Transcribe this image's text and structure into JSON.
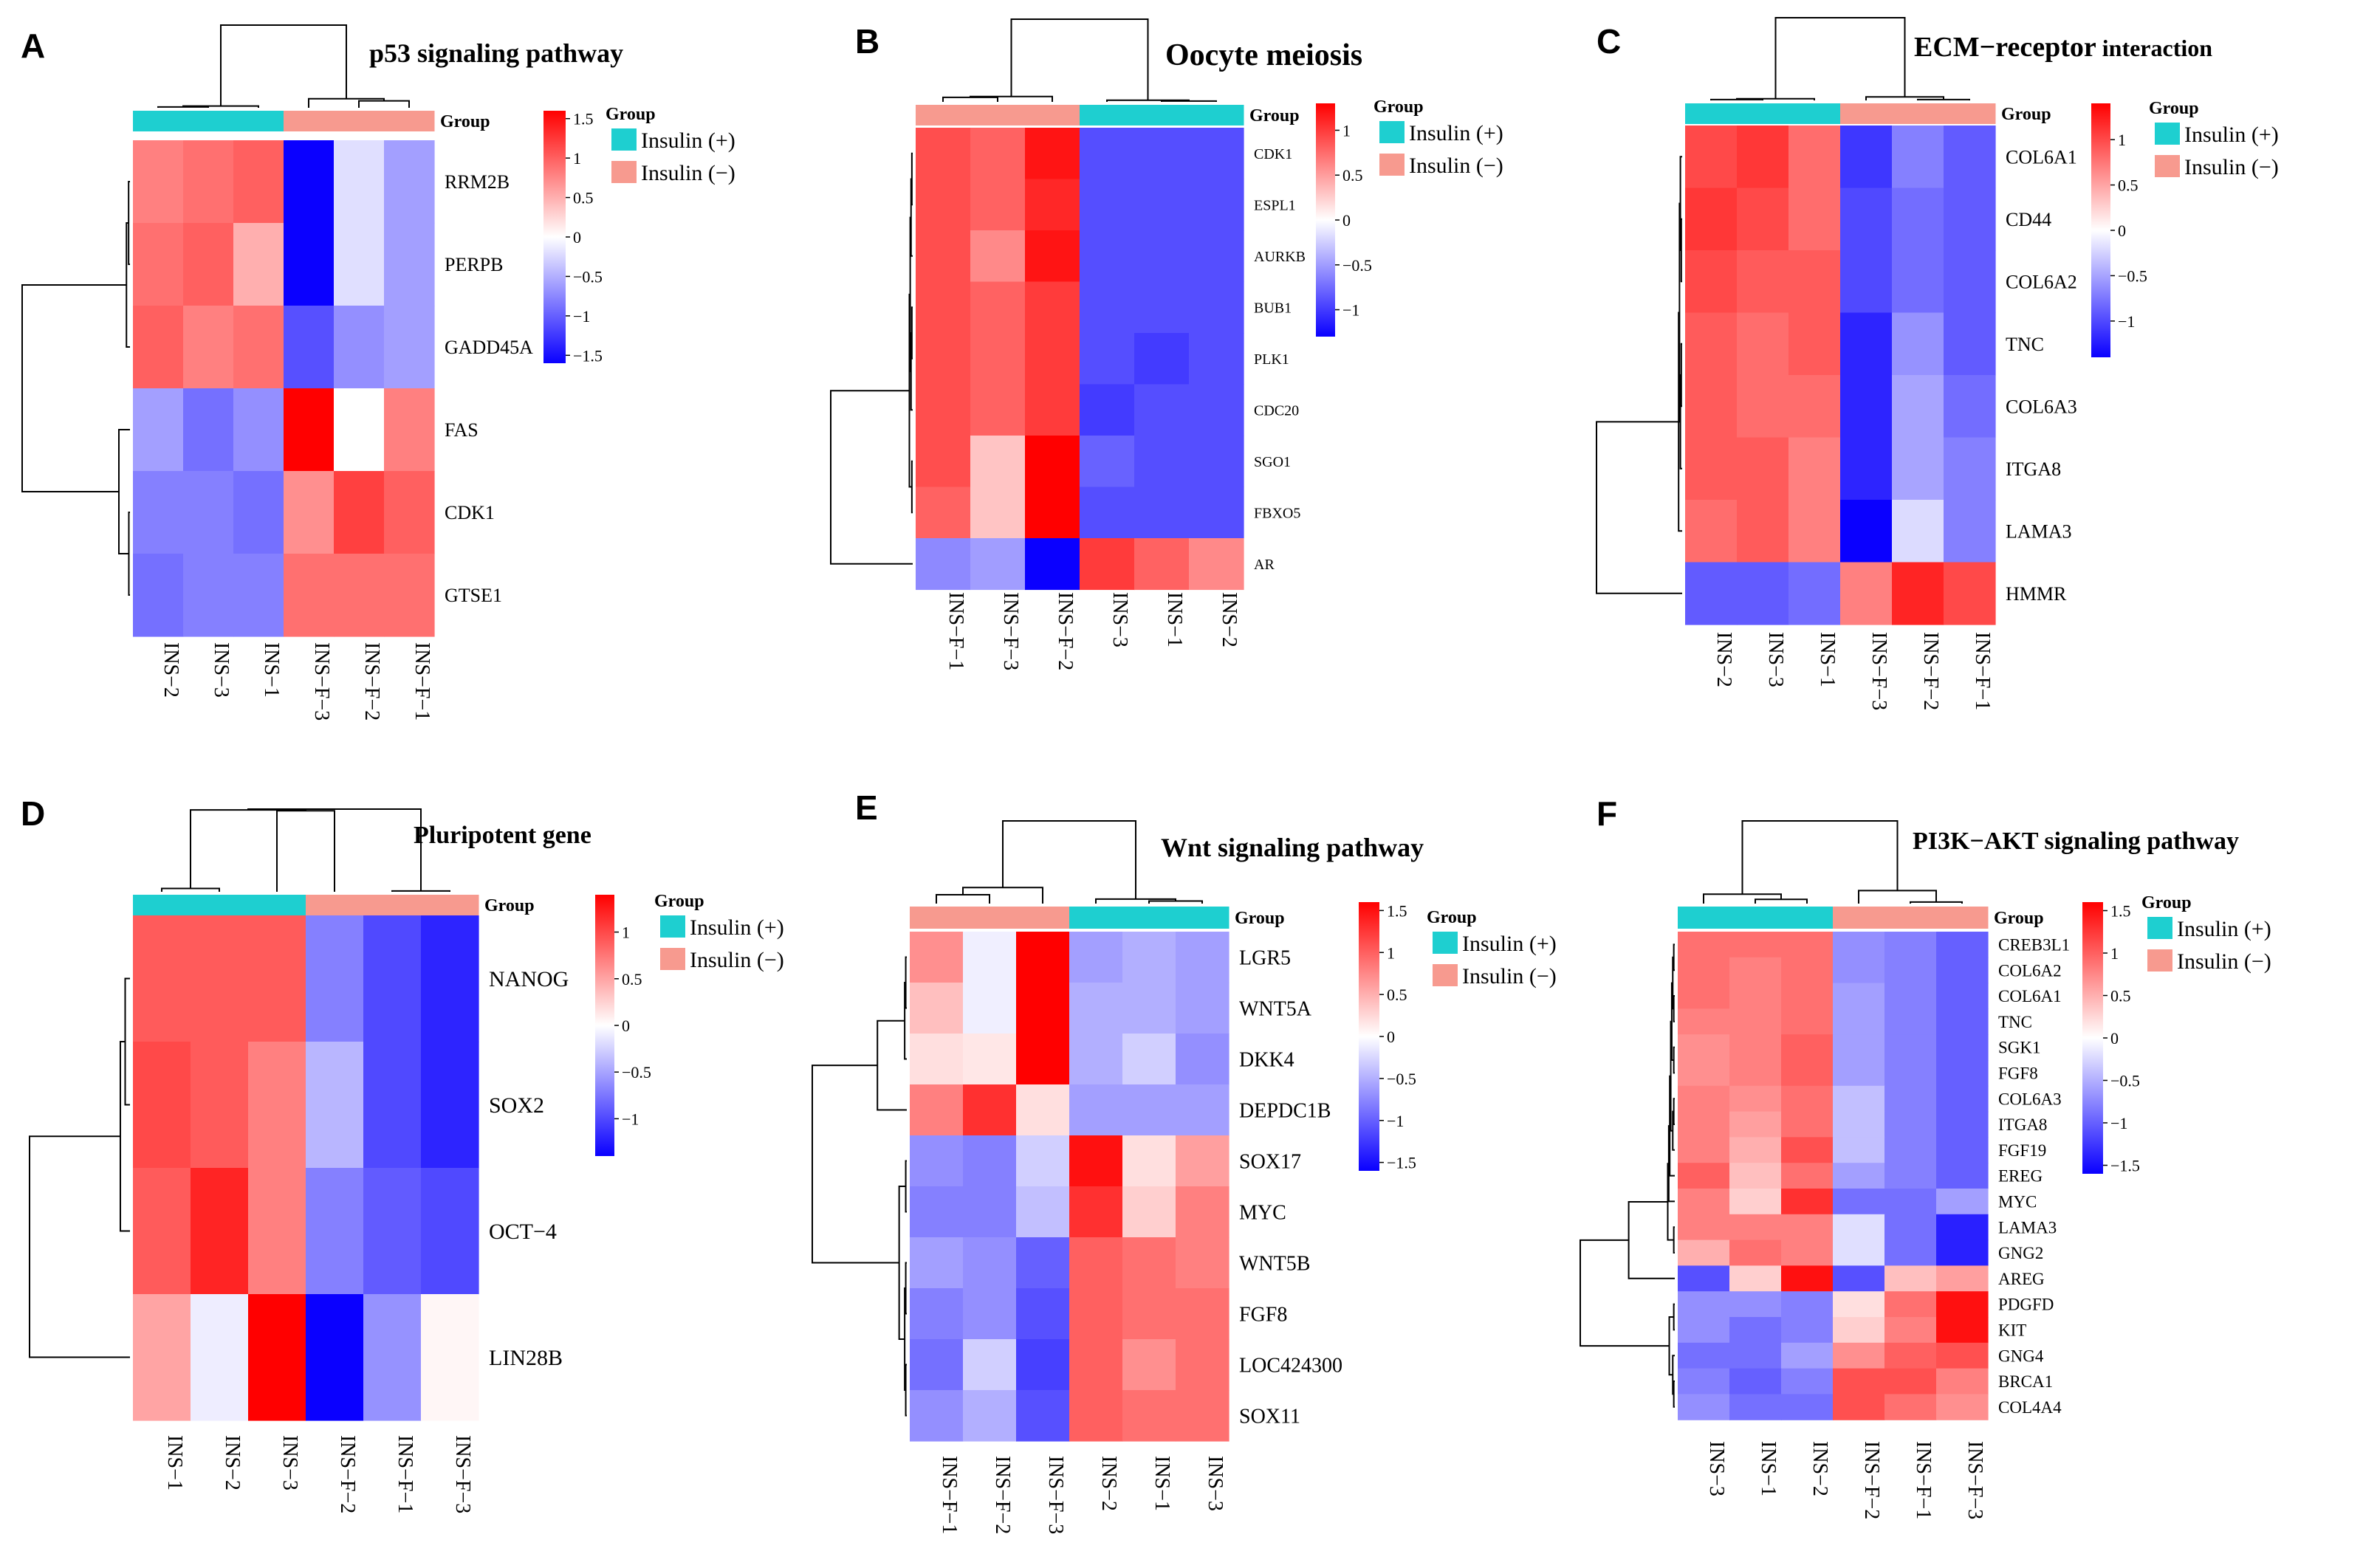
{
  "colors": {
    "insulin_plus": "#1ECFD0",
    "insulin_minus": "#F79A8F",
    "low": "#0A00FF",
    "mid": "#FFFFFF",
    "high": "#FF0000"
  },
  "legend": {
    "title": "Group",
    "plus_label": "Insulin (+)",
    "minus_label": "Insulin (−)"
  },
  "group_row_label": "Group",
  "chart_data": [
    {
      "type": "heatmap",
      "panel": "A",
      "title": "p53 signaling pathway",
      "samples": [
        "INS−2",
        "INS−3",
        "INS−1",
        "INS−F−3",
        "INS−F−2",
        "INS−F−1"
      ],
      "sample_groups": [
        "plus",
        "plus",
        "plus",
        "minus",
        "minus",
        "minus"
      ],
      "genes": [
        "RRM2B",
        "PERPB",
        "GADD45A",
        "FAS",
        "CDK1",
        "GTSE1"
      ],
      "values": [
        [
          0.8,
          0.9,
          1.0,
          -1.6,
          -0.2,
          -0.6
        ],
        [
          0.9,
          1.0,
          0.5,
          -1.6,
          -0.2,
          -0.6
        ],
        [
          1.0,
          0.8,
          0.9,
          -1.1,
          -0.7,
          -0.6
        ],
        [
          -0.6,
          -0.9,
          -0.7,
          1.6,
          0.0,
          0.8
        ],
        [
          -0.8,
          -0.8,
          -0.9,
          0.7,
          1.2,
          1.0
        ],
        [
          -0.9,
          -0.8,
          -0.8,
          0.9,
          0.9,
          0.9
        ]
      ],
      "scale_ticks": [
        "1.5",
        "1",
        "0.5",
        "0",
        "−0.5",
        "−1",
        "−1.5"
      ],
      "tick_values": [
        1.5,
        1,
        0.5,
        0,
        -0.5,
        -1,
        -1.5
      ],
      "range": [
        -1.6,
        1.6
      ]
    },
    {
      "type": "heatmap",
      "panel": "B",
      "title": "Oocyte meiosis",
      "samples": [
        "INS−F−1",
        "INS−F−3",
        "INS−F−2",
        "INS−3",
        "INS−1",
        "INS−2"
      ],
      "sample_groups": [
        "minus",
        "minus",
        "minus",
        "plus",
        "plus",
        "plus"
      ],
      "genes": [
        "CDK1",
        "ESPL1",
        "AURKB",
        "BUB1",
        "PLK1",
        "CDC20",
        "SGO1",
        "FBXO5",
        "AR"
      ],
      "values": [
        [
          0.9,
          0.8,
          1.2,
          -0.9,
          -0.9,
          -0.9
        ],
        [
          0.9,
          0.8,
          1.1,
          -0.9,
          -0.9,
          -0.9
        ],
        [
          0.9,
          0.6,
          1.2,
          -0.9,
          -0.9,
          -0.9
        ],
        [
          0.9,
          0.8,
          1.0,
          -0.9,
          -0.9,
          -0.9
        ],
        [
          0.9,
          0.8,
          1.0,
          -0.9,
          -1.0,
          -0.9
        ],
        [
          0.9,
          0.8,
          1.0,
          -1.0,
          -0.9,
          -0.9
        ],
        [
          0.9,
          0.3,
          1.3,
          -0.8,
          -0.9,
          -0.9
        ],
        [
          0.8,
          0.3,
          1.3,
          -0.9,
          -0.9,
          -0.9
        ],
        [
          -0.6,
          -0.5,
          -1.3,
          1.0,
          0.8,
          0.6
        ]
      ],
      "scale_ticks": [
        "1",
        "0.5",
        "0",
        "−0.5",
        "−1"
      ],
      "tick_values": [
        1,
        0.5,
        0,
        -0.5,
        -1
      ],
      "range": [
        -1.3,
        1.3
      ]
    },
    {
      "type": "heatmap",
      "panel": "C",
      "title": "ECM−receptor",
      "title_suffix": "interaction",
      "samples": [
        "INS−2",
        "INS−3",
        "INS−1",
        "INS−F−3",
        "INS−F−2",
        "INS−F−1"
      ],
      "sample_groups": [
        "plus",
        "plus",
        "plus",
        "minus",
        "minus",
        "minus"
      ],
      "genes": [
        "COL6A1",
        "CD44",
        "COL6A2",
        "TNC",
        "COL6A3",
        "ITGA8",
        "LAMA3",
        "HMMR"
      ],
      "values": [
        [
          1.0,
          1.1,
          0.8,
          -1.1,
          -0.7,
          -0.9
        ],
        [
          1.1,
          1.0,
          0.8,
          -1.0,
          -0.8,
          -0.9
        ],
        [
          1.0,
          0.9,
          0.9,
          -1.0,
          -0.8,
          -0.9
        ],
        [
          0.9,
          0.8,
          0.9,
          -1.2,
          -0.6,
          -0.9
        ],
        [
          0.9,
          0.8,
          0.8,
          -1.2,
          -0.5,
          -0.8
        ],
        [
          0.9,
          0.9,
          0.7,
          -1.2,
          -0.5,
          -0.7
        ],
        [
          0.8,
          0.9,
          0.7,
          -1.4,
          -0.2,
          -0.7
        ],
        [
          -0.9,
          -0.9,
          -0.8,
          0.7,
          1.2,
          1.0
        ]
      ],
      "scale_ticks": [
        "1",
        "0.5",
        "0",
        "−0.5",
        "−1"
      ],
      "tick_values": [
        1,
        0.5,
        0,
        -0.5,
        -1
      ],
      "range": [
        -1.4,
        1.4
      ]
    },
    {
      "type": "heatmap",
      "panel": "D",
      "title": "Pluripotent gene",
      "samples": [
        "INS−1",
        "INS−2",
        "INS−3",
        "INS−F−2",
        "INS−F−1",
        "INS−F−3"
      ],
      "sample_groups": [
        "plus",
        "plus",
        "plus",
        "minus",
        "minus",
        "minus"
      ],
      "genes": [
        "NANOG",
        "SOX2",
        "OCT−4",
        "LIN28B"
      ],
      "values": [
        [
          0.9,
          0.9,
          0.9,
          -0.7,
          -1.0,
          -1.2
        ],
        [
          1.0,
          0.9,
          0.7,
          -0.4,
          -1.0,
          -1.2
        ],
        [
          0.9,
          1.2,
          0.7,
          -0.7,
          -0.9,
          -1.0
        ],
        [
          0.5,
          -0.1,
          1.4,
          -1.4,
          -0.6,
          0.05
        ]
      ],
      "scale_ticks": [
        "1",
        "0.5",
        "0",
        "−0.5",
        "−1"
      ],
      "tick_values": [
        1,
        0.5,
        0,
        -0.5,
        -1
      ],
      "range": [
        -1.4,
        1.4
      ]
    },
    {
      "type": "heatmap",
      "panel": "E",
      "title": "Wnt  signaling pathway",
      "samples": [
        "INS−F−1",
        "INS−F−2",
        "INS−F−3",
        "INS−2",
        "INS−1",
        "INS−3"
      ],
      "sample_groups": [
        "minus",
        "minus",
        "minus",
        "plus",
        "plus",
        "plus"
      ],
      "genes": [
        "LGR5",
        "WNT5A",
        "DKK4",
        "DEPDC1B",
        "SOX17",
        "MYC",
        "WNT5B",
        "FGF8",
        "LOC424300",
        "SOX11"
      ],
      "values": [
        [
          0.7,
          -0.1,
          1.6,
          -0.6,
          -0.5,
          -0.6
        ],
        [
          0.4,
          -0.1,
          1.6,
          -0.5,
          -0.5,
          -0.6
        ],
        [
          0.2,
          0.15,
          1.6,
          -0.5,
          -0.3,
          -0.7
        ],
        [
          0.8,
          1.3,
          0.2,
          -0.6,
          -0.6,
          -0.6
        ],
        [
          -0.7,
          -0.8,
          -0.3,
          1.5,
          0.2,
          0.6
        ],
        [
          -0.8,
          -0.8,
          -0.4,
          1.3,
          0.3,
          0.8
        ],
        [
          -0.6,
          -0.7,
          -1.0,
          1.0,
          0.9,
          0.8
        ],
        [
          -0.8,
          -0.7,
          -1.1,
          1.0,
          0.9,
          0.9
        ],
        [
          -0.9,
          -0.3,
          -1.2,
          1.0,
          0.7,
          0.9
        ],
        [
          -0.7,
          -0.5,
          -1.1,
          1.0,
          0.9,
          0.9
        ]
      ],
      "scale_ticks": [
        "1.5",
        "1",
        "0.5",
        "0",
        "−0.5",
        "−1",
        "−1.5"
      ],
      "tick_values": [
        1.5,
        1,
        0.5,
        0,
        -0.5,
        -1,
        -1.5
      ],
      "range": [
        -1.6,
        1.6
      ]
    },
    {
      "type": "heatmap",
      "panel": "F",
      "title": "PI3K−AKT signaling pathway",
      "samples": [
        "INS−3",
        "INS−1",
        "INS−2",
        "INS−F−2",
        "INS−F−1",
        "INS−F−3"
      ],
      "sample_groups": [
        "plus",
        "plus",
        "plus",
        "minus",
        "minus",
        "minus"
      ],
      "genes": [
        "CREB3L1",
        "COL6A2",
        "COL6A1",
        "TNC",
        "SGK1",
        "FGF8",
        "COL6A3",
        "ITGA8",
        "FGF19",
        "EREG",
        "MYC",
        "LAMA3",
        "GNG2",
        "AREG",
        "PDGFD",
        "KIT",
        "GNG4",
        "BRCA1",
        "COL4A4"
      ],
      "values": [
        [
          0.9,
          0.9,
          0.9,
          -0.7,
          -0.8,
          -1.0
        ],
        [
          0.9,
          0.8,
          0.9,
          -0.7,
          -0.8,
          -1.0
        ],
        [
          0.9,
          0.8,
          0.9,
          -0.6,
          -0.8,
          -1.0
        ],
        [
          0.8,
          0.8,
          0.9,
          -0.6,
          -0.8,
          -1.0
        ],
        [
          0.7,
          0.8,
          1.0,
          -0.6,
          -0.8,
          -1.0
        ],
        [
          0.7,
          0.8,
          1.0,
          -0.6,
          -0.8,
          -1.0
        ],
        [
          0.8,
          0.7,
          0.9,
          -0.4,
          -0.8,
          -1.0
        ],
        [
          0.8,
          0.6,
          0.9,
          -0.4,
          -0.8,
          -1.0
        ],
        [
          0.8,
          0.5,
          1.1,
          -0.4,
          -0.8,
          -1.0
        ],
        [
          1.0,
          0.4,
          0.9,
          -0.6,
          -0.8,
          -1.0
        ],
        [
          0.8,
          0.3,
          1.3,
          -0.9,
          -0.9,
          -0.6
        ],
        [
          0.8,
          0.8,
          0.8,
          -0.2,
          -0.9,
          -1.4
        ],
        [
          0.5,
          0.9,
          0.8,
          -0.2,
          -0.9,
          -1.4
        ],
        [
          -1.1,
          0.3,
          1.5,
          -1.1,
          0.4,
          0.6
        ],
        [
          -0.7,
          -0.7,
          -0.8,
          0.2,
          0.9,
          1.5
        ],
        [
          -0.7,
          -0.9,
          -0.8,
          0.3,
          0.8,
          1.5
        ],
        [
          -0.9,
          -0.9,
          -0.6,
          0.7,
          1.0,
          1.1
        ],
        [
          -0.8,
          -1.0,
          -0.8,
          1.1,
          1.1,
          0.8
        ],
        [
          -0.7,
          -0.9,
          -0.9,
          1.1,
          0.9,
          0.7
        ]
      ],
      "scale_ticks": [
        "1.5",
        "1",
        "0.5",
        "0",
        "−0.5",
        "−1",
        "−1.5"
      ],
      "tick_values": [
        1.5,
        1,
        0.5,
        0,
        -0.5,
        -1,
        -1.5
      ],
      "range": [
        -1.6,
        1.6
      ]
    }
  ]
}
